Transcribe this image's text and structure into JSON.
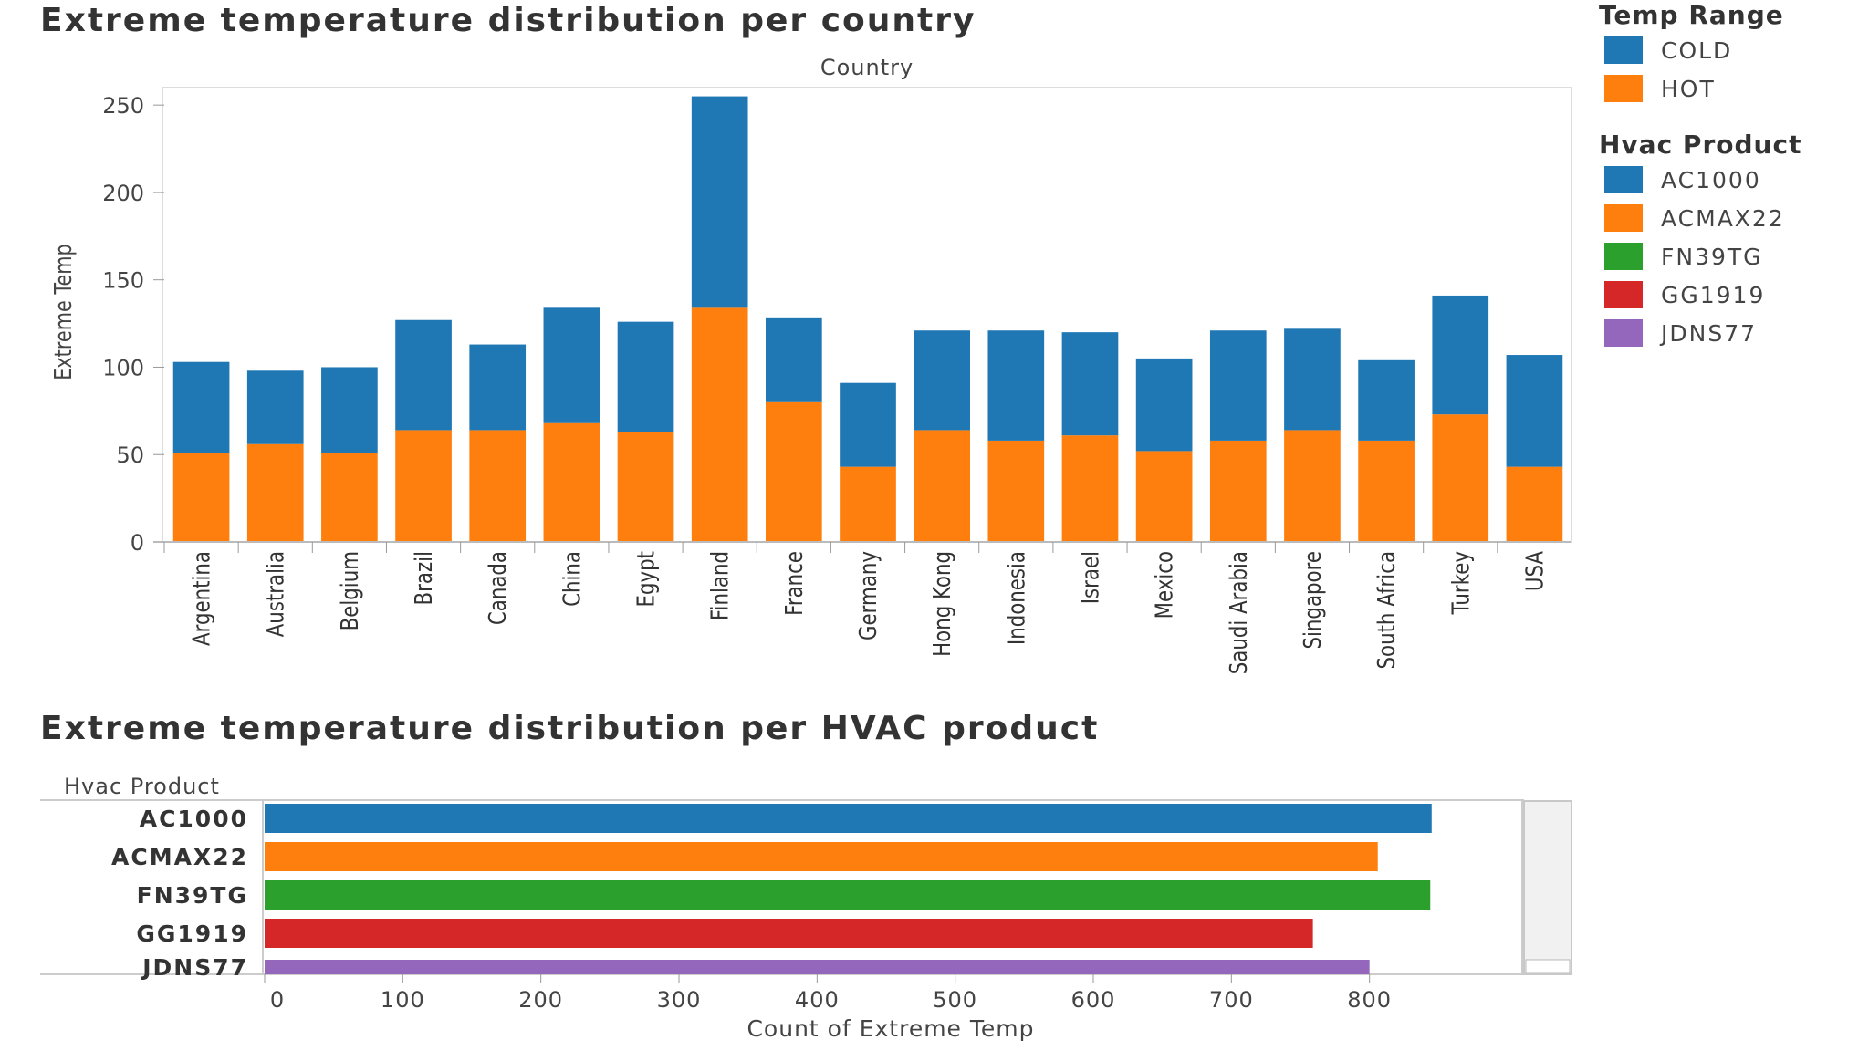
{
  "chart_data": [
    {
      "type": "bar",
      "stacked": true,
      "title": "Extreme temperature distribution per country",
      "header_label": "Country",
      "ylabel": "Extreme Temp",
      "xlabel": "",
      "ylim": [
        0,
        260
      ],
      "yticks": [
        0,
        50,
        100,
        150,
        200,
        250
      ],
      "categories": [
        "Argentina",
        "Australia",
        "Belgium",
        "Brazil",
        "Canada",
        "China",
        "Egypt",
        "Finland",
        "France",
        "Germany",
        "Hong Kong",
        "Indonesia",
        "Israel",
        "Mexico",
        "Saudi Arabia",
        "Singapore",
        "South Africa",
        "Turkey",
        "USA"
      ],
      "series": [
        {
          "name": "HOT",
          "color": "#ff7f0e",
          "values": [
            51,
            56,
            51,
            64,
            64,
            68,
            63,
            134,
            80,
            43,
            64,
            58,
            61,
            52,
            58,
            64,
            58,
            73,
            43
          ]
        },
        {
          "name": "COLD",
          "color": "#1f77b4",
          "values": [
            52,
            42,
            49,
            63,
            49,
            66,
            63,
            121,
            48,
            48,
            57,
            63,
            59,
            53,
            63,
            58,
            46,
            68,
            64
          ]
        }
      ]
    },
    {
      "type": "bar",
      "orientation": "horizontal",
      "title": "Extreme temperature distribution per HVAC product",
      "header_label": "Hvac Product",
      "xlabel": "Count of Extreme Temp",
      "xlim": [
        0,
        900
      ],
      "xticks": [
        0,
        100,
        200,
        300,
        400,
        500,
        600,
        700,
        800
      ],
      "categories": [
        "AC1000",
        "ACMAX22",
        "FN39TG",
        "GG1919",
        "JDNS77"
      ],
      "colors": [
        "#1f77b4",
        "#ff7f0e",
        "#2ca02c",
        "#d62728",
        "#9467bd"
      ],
      "values": [
        845,
        806,
        844,
        759,
        800
      ]
    }
  ],
  "legend": {
    "temp_range": {
      "title": "Temp Range",
      "items": [
        {
          "label": "COLD",
          "color": "#1f77b4"
        },
        {
          "label": "HOT",
          "color": "#ff7f0e"
        }
      ]
    },
    "hvac_product": {
      "title": "Hvac Product",
      "items": [
        {
          "label": "AC1000",
          "color": "#1f77b4"
        },
        {
          "label": "ACMAX22",
          "color": "#ff7f0e"
        },
        {
          "label": "FN39TG",
          "color": "#2ca02c"
        },
        {
          "label": "GG1919",
          "color": "#d62728"
        },
        {
          "label": "JDNS77",
          "color": "#9467bd"
        }
      ]
    }
  }
}
